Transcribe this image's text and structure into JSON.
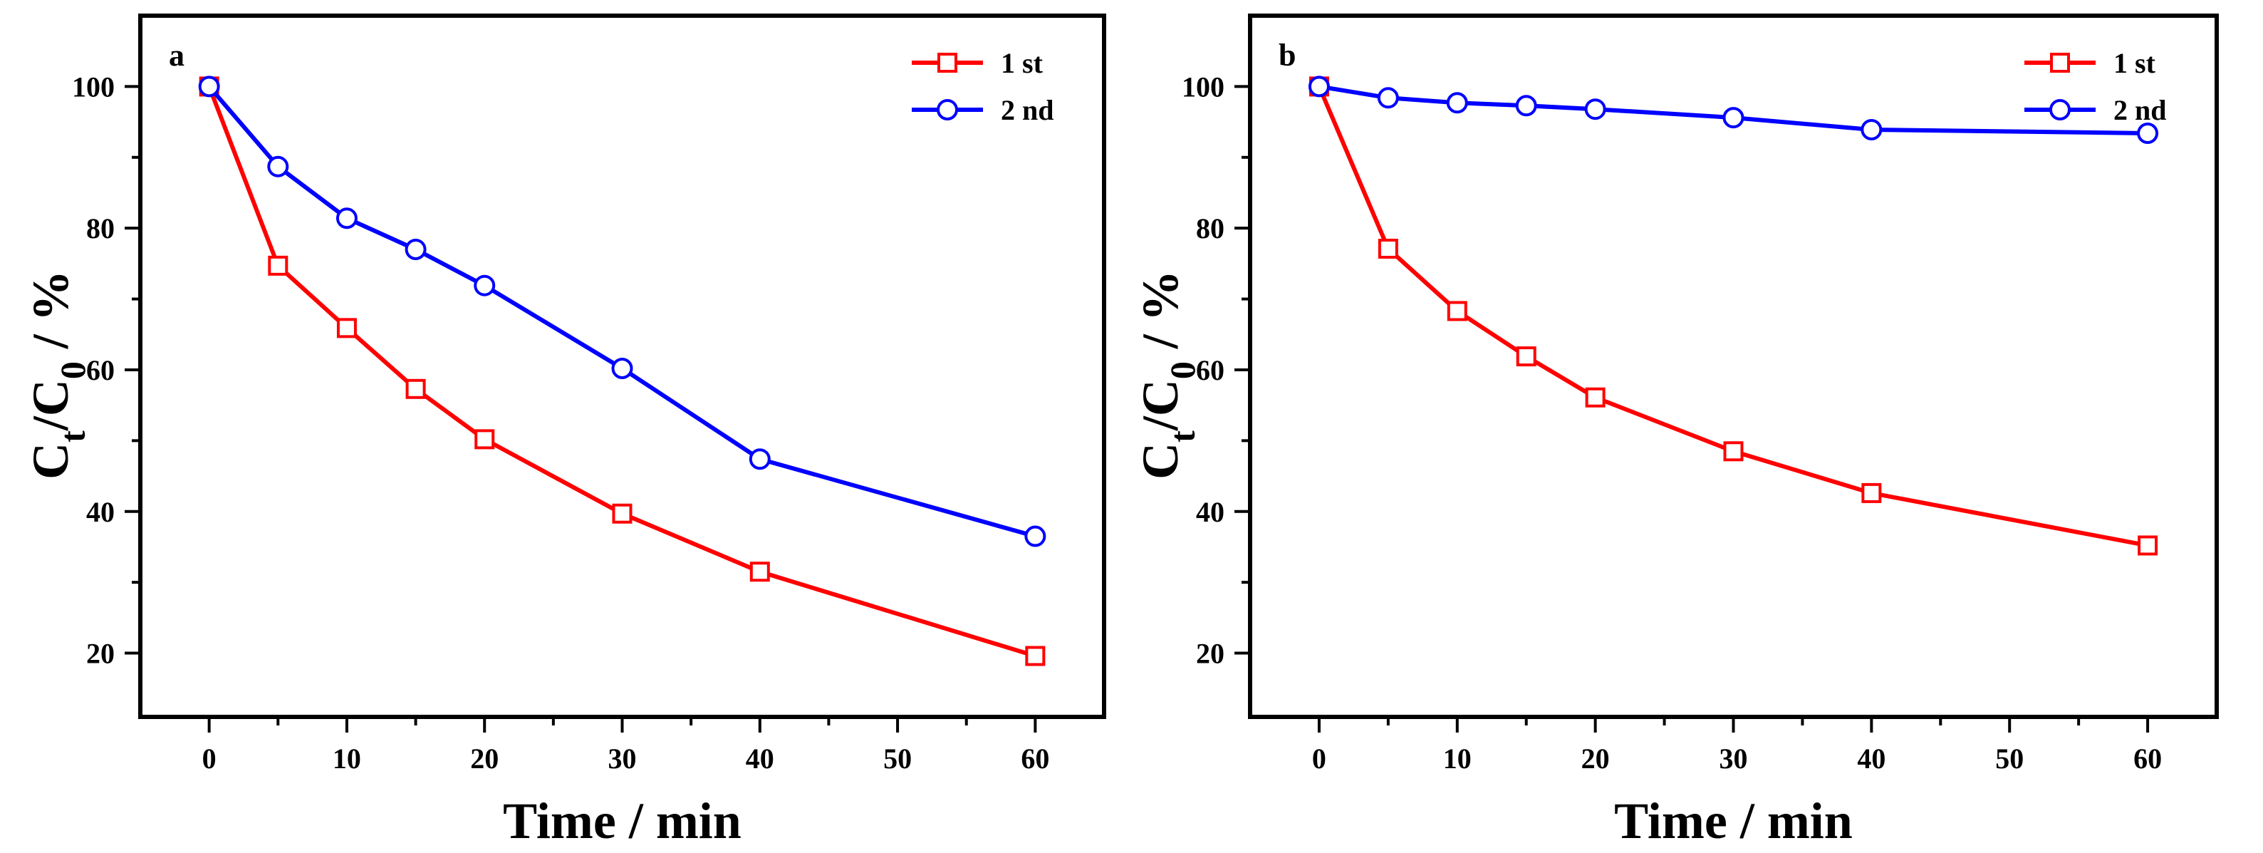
{
  "colors": {
    "first_run": "#ff0000",
    "second_run": "#0000ff"
  },
  "chart_data": [
    {
      "type": "line",
      "panel_label": "a",
      "x": [
        0,
        5,
        10,
        15,
        20,
        30,
        40,
        60
      ],
      "series": [
        {
          "name": "1 st",
          "marker": "square",
          "values": [
            100,
            74.7,
            65.9,
            57.3,
            50.2,
            39.7,
            31.5,
            19.6
          ]
        },
        {
          "name": "2 nd",
          "marker": "circle",
          "values": [
            100,
            88.7,
            81.4,
            77.0,
            71.9,
            60.2,
            47.4,
            36.5
          ]
        }
      ],
      "xlabel": "Time / min",
      "ylabel_main": "C",
      "ylabel_sub_t": "t",
      "ylabel_slash": "/C",
      "ylabel_sub_0": "0",
      "ylabel_tail": " / %",
      "xlim": [
        -5,
        65
      ],
      "ylim": [
        11,
        110
      ],
      "xticks": [
        0,
        10,
        20,
        30,
        40,
        50,
        60
      ],
      "xticklabels": [
        "0",
        "10",
        "20",
        "30",
        "40",
        "50",
        "60"
      ],
      "yticks": [
        20,
        40,
        60,
        80,
        100
      ],
      "yticklabels": [
        "20",
        "40",
        "60",
        "80",
        "100"
      ],
      "legend_position": "top-right",
      "grid": false
    },
    {
      "type": "line",
      "panel_label": "b",
      "x": [
        0,
        5,
        10,
        15,
        20,
        30,
        40,
        60
      ],
      "series": [
        {
          "name": "1 st",
          "marker": "square",
          "values": [
            100,
            77.1,
            68.3,
            61.9,
            56.1,
            48.5,
            42.6,
            35.2
          ]
        },
        {
          "name": "2 nd",
          "marker": "circle",
          "values": [
            100,
            98.4,
            97.7,
            97.3,
            96.8,
            95.6,
            93.9,
            93.4
          ]
        }
      ],
      "xlabel": "Time / min",
      "ylabel_main": "C",
      "ylabel_sub_t": "t",
      "ylabel_slash": "/C",
      "ylabel_sub_0": "0",
      "ylabel_tail": " / %",
      "xlim": [
        -5,
        65
      ],
      "ylim": [
        11,
        110
      ],
      "xticks": [
        0,
        10,
        20,
        30,
        40,
        50,
        60
      ],
      "xticklabels": [
        "0",
        "10",
        "20",
        "30",
        "40",
        "50",
        "60"
      ],
      "yticks": [
        20,
        40,
        60,
        80,
        100
      ],
      "yticklabels": [
        "20",
        "40",
        "60",
        "80",
        "100"
      ],
      "legend_position": "top-right",
      "grid": false
    }
  ]
}
